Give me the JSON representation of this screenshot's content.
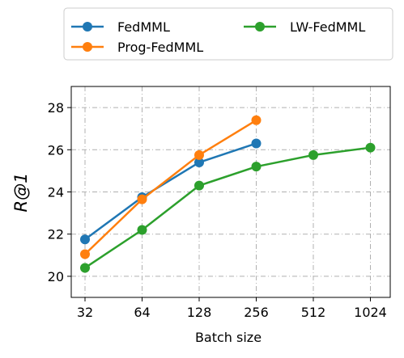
{
  "chart_data": {
    "type": "line",
    "title": "",
    "xlabel": "Batch size",
    "ylabel": "R@1",
    "x_scale": "log2",
    "x": [
      32,
      64,
      128,
      256,
      512,
      1024
    ],
    "xtick_labels": [
      "32",
      "64",
      "128",
      "256",
      "512",
      "1024"
    ],
    "yticks": [
      20,
      22,
      24,
      26,
      28
    ],
    "ytick_labels": [
      "20",
      "22",
      "24",
      "26",
      "28"
    ],
    "ylim": [
      19.0,
      29.0
    ],
    "grid": true,
    "legend_position": "above plot, two columns",
    "series": [
      {
        "name": "FedMML",
        "color": "#1f77b4",
        "x": [
          32,
          64,
          128,
          256
        ],
        "values": [
          21.75,
          23.75,
          25.4,
          26.3
        ]
      },
      {
        "name": "Prog-FedMML",
        "color": "#ff7f0e",
        "x": [
          32,
          64,
          128,
          256
        ],
        "values": [
          21.05,
          23.65,
          25.75,
          27.4
        ]
      },
      {
        "name": "LW-FedMML",
        "color": "#2ca02c",
        "x": [
          32,
          64,
          128,
          256,
          512,
          1024
        ],
        "values": [
          20.4,
          22.2,
          24.3,
          25.2,
          25.75,
          26.1
        ]
      }
    ]
  }
}
